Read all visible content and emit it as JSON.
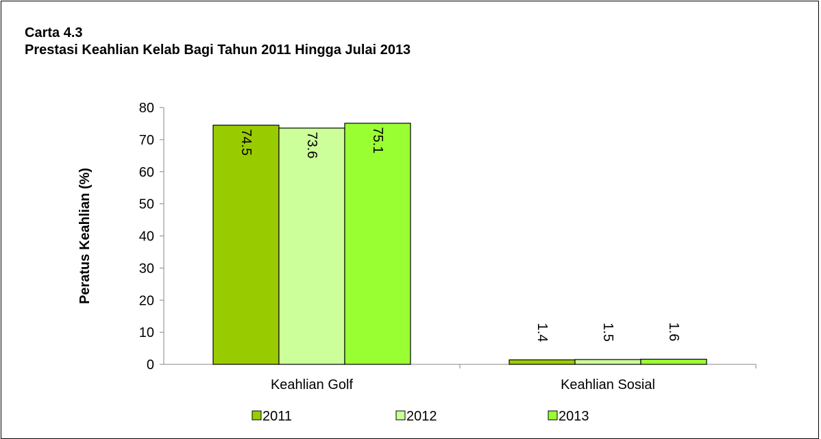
{
  "chart_data": {
    "type": "bar",
    "title": "Carta 4.3",
    "subtitle": "Prestasi Keahlian Kelab Bagi Tahun 2011 Hingga Julai 2013",
    "ylabel": "Peratus Keahlian (%)",
    "xlabel": "",
    "ylim": [
      0,
      80
    ],
    "yticks": [
      0,
      10,
      20,
      30,
      40,
      50,
      60,
      70,
      80
    ],
    "categories": [
      "Keahlian Golf",
      "Keahlian Sosial"
    ],
    "series": [
      {
        "name": "2011",
        "values": [
          74.5,
          1.4
        ],
        "color": "#99cc00"
      },
      {
        "name": "2012",
        "values": [
          73.6,
          1.5
        ],
        "color": "#ccff99"
      },
      {
        "name": "2013",
        "values": [
          75.1,
          1.6
        ],
        "color": "#99ff33"
      }
    ],
    "grid": false,
    "legend": "bottom"
  }
}
